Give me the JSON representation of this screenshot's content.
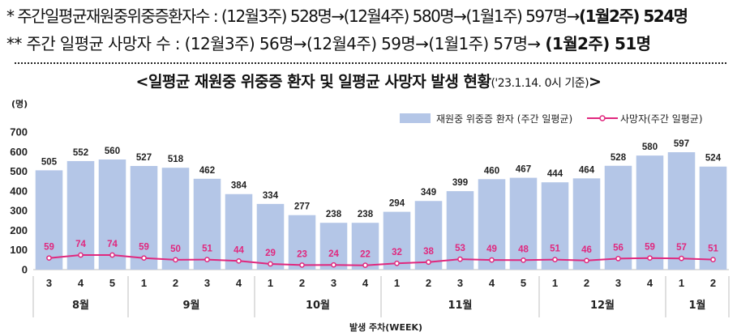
{
  "header": {
    "line1": {
      "prefix": "*  주간일평균재원중위중증환자수 : (12월3주) 528명→(12월4주) 580명→(1월1주) 597명→",
      "bold": "(1월2주) 524명"
    },
    "line2": {
      "prefix": "**  주간 일평균 사망자 수 : (12월3주) 56명→(12월4주) 59명→(1월1주) 57명→ ",
      "bold": "(1월2주) 51명"
    },
    "title_main": "<일평균 재원중 위중증 환자 및 일평균 사망자 발생 현황",
    "title_sub": "('23.1.14. 0시 기준)",
    "title_end": ">"
  },
  "chart_data": {
    "type": "bar",
    "y_unit_label": "(명)",
    "xlabel": "발생 주차(WEEK)",
    "ylim": [
      0,
      700
    ],
    "y_ticks": [
      "0",
      "100",
      "200",
      "300",
      "400",
      "500",
      "600",
      "700"
    ],
    "categories": [
      "3",
      "4",
      "5",
      "1",
      "2",
      "3",
      "4",
      "1",
      "2",
      "3",
      "4",
      "1",
      "2",
      "3",
      "4",
      "5",
      "1",
      "2",
      "3",
      "4",
      "1",
      "2"
    ],
    "months": [
      {
        "label": "8월",
        "span": 3
      },
      {
        "label": "9월",
        "span": 4
      },
      {
        "label": "10월",
        "span": 4
      },
      {
        "label": "11월",
        "span": 5
      },
      {
        "label": "12월",
        "span": 4
      },
      {
        "label": "1월",
        "span": 2
      }
    ],
    "series": [
      {
        "name": "재원중 위중증 환자 (주간 일평균)",
        "type": "bar",
        "color": "#b4c6e7",
        "values": [
          505,
          552,
          560,
          527,
          518,
          462,
          384,
          334,
          277,
          238,
          238,
          294,
          349,
          399,
          460,
          467,
          444,
          464,
          528,
          580,
          597,
          524
        ]
      },
      {
        "name": "사망자(주간 일평균)",
        "type": "line",
        "color": "#e0287e",
        "values": [
          59,
          74,
          74,
          59,
          50,
          51,
          44,
          29,
          23,
          24,
          22,
          32,
          38,
          53,
          49,
          48,
          51,
          46,
          56,
          59,
          57,
          51
        ]
      }
    ],
    "grid": false,
    "legend_position": "top-right"
  }
}
